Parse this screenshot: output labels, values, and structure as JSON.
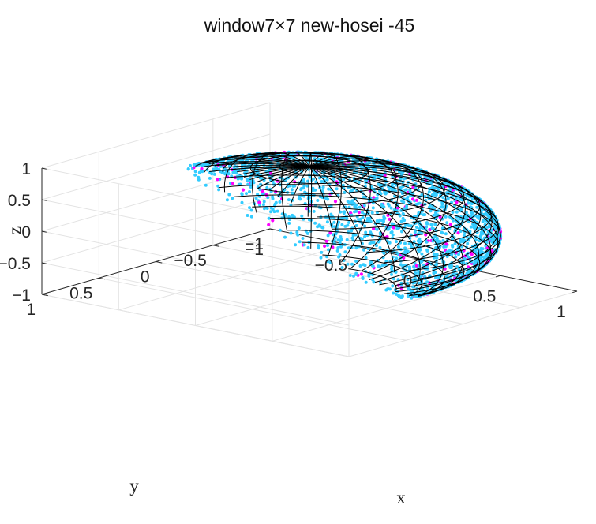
{
  "chart_data": {
    "type": "scatter",
    "projection": "3d",
    "title": "window7×7 new-hosei -45",
    "xlabel": "x",
    "ylabel": "y",
    "zlabel": "z",
    "xlim": [
      -1,
      1
    ],
    "ylim": [
      -1,
      1
    ],
    "zlim": [
      -1,
      1
    ],
    "xticks": [
      "−1",
      "−0.5",
      "0",
      "0.5",
      "1"
    ],
    "yticks": [
      "−1",
      "−0.5",
      "0",
      "0.5",
      "1"
    ],
    "zticks": [
      "−1",
      "−0.5",
      "0",
      "0.5",
      "1"
    ],
    "grid": true,
    "surface": {
      "shape": "unit-sphere",
      "mesh": "wireframe",
      "color": "#000000"
    },
    "series": [
      {
        "color": "#33ccff",
        "marker": "point",
        "description_values": "dense points on unit sphere surface"
      },
      {
        "color": "#ff00ff",
        "marker": "point",
        "description_values": "sparse points on unit sphere surface"
      }
    ]
  }
}
